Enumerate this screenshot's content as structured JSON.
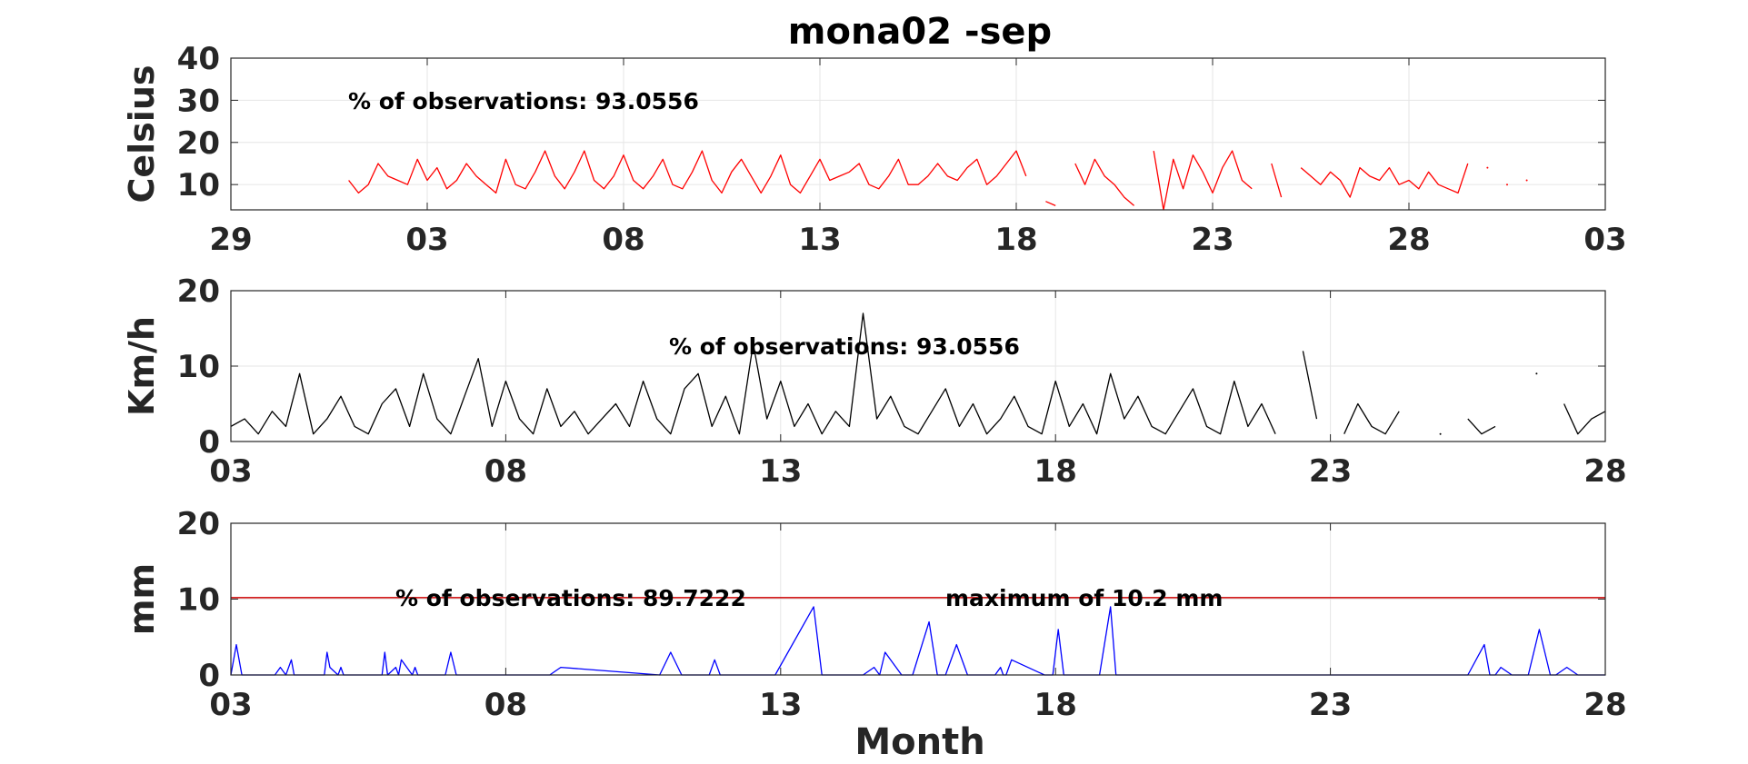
{
  "figure_title": "mona02 -sep",
  "xlabel": "Month",
  "colors": {
    "temperature": "#ff0000",
    "wind": "#000000",
    "precip": "#0000ff",
    "max_line": "#cc0000",
    "grid": "#e6e6e6",
    "axes": "#262626"
  },
  "chart_data": [
    {
      "type": "line",
      "title": "mona02 -sep",
      "ylabel": "Celsius",
      "ylim": [
        4,
        40
      ],
      "yticks": [
        10,
        20,
        30,
        40
      ],
      "xlim": [
        29,
        64
      ],
      "xticks": [
        29,
        34,
        39,
        44,
        49,
        54,
        59,
        64
      ],
      "xtick_labels": [
        "29",
        "03",
        "08",
        "13",
        "18",
        "23",
        "28",
        "03"
      ],
      "grid": true,
      "annotations": [
        "% of observations: 93.0556"
      ],
      "series": [
        {
          "color": "#ff0000",
          "x": [
            32.0,
            32.25,
            32.5,
            32.75,
            33.0,
            33.25,
            33.5,
            33.75,
            34.0,
            34.25,
            34.5,
            34.75,
            35.0,
            35.25,
            35.5,
            35.75,
            36.0,
            36.25,
            36.5,
            36.75,
            37.0,
            37.25,
            37.5,
            37.75,
            38.0,
            38.25,
            38.5,
            38.75,
            39.0,
            39.25,
            39.5,
            39.75,
            40.0,
            40.25,
            40.5,
            40.75,
            41.0,
            41.25,
            41.5,
            41.75,
            42.0,
            42.25,
            42.5,
            42.75,
            43.0,
            43.25,
            43.5,
            43.75,
            44.0,
            44.25,
            44.5,
            44.75,
            45.0,
            45.25,
            45.5,
            45.75,
            46.0,
            46.25,
            46.5,
            46.75,
            47.0,
            47.25,
            47.5,
            47.75,
            48.0,
            48.25,
            48.5,
            48.75,
            49.0,
            49.25,
            49.5,
            49.75,
            50.0,
            50.25,
            50.5,
            50.75,
            51.0,
            51.25,
            51.5,
            51.75,
            52.0,
            52.25,
            52.5,
            52.75,
            53.0,
            53.25,
            53.5,
            53.75,
            54.0,
            54.25,
            54.5,
            54.75,
            55.0,
            55.25,
            55.5,
            55.75,
            56.0,
            56.25,
            56.5,
            56.75,
            57.0,
            57.25,
            57.5,
            57.75,
            58.0,
            58.25,
            58.5,
            58.75,
            59.0,
            59.25,
            59.5,
            59.75,
            60.0,
            60.25,
            60.5,
            60.75,
            61.0,
            61.25,
            61.5,
            61.75,
            62.0
          ],
          "y": [
            11,
            8,
            10,
            15,
            12,
            11,
            10,
            16,
            11,
            14,
            9,
            11,
            15,
            12,
            10,
            8,
            16,
            10,
            9,
            13,
            18,
            12,
            9,
            13,
            18,
            11,
            9,
            12,
            17,
            11,
            9,
            12,
            16,
            10,
            9,
            13,
            18,
            11,
            8,
            13,
            16,
            12,
            8,
            12,
            17,
            10,
            8,
            12,
            16,
            11,
            12,
            13,
            15,
            10,
            9,
            12,
            16,
            10,
            10,
            12,
            15,
            12,
            11,
            14,
            16,
            10,
            12,
            15,
            18,
            12,
            null,
            6,
            5,
            null,
            15,
            10,
            16,
            12,
            10,
            7,
            5,
            null,
            18,
            4,
            16,
            9,
            17,
            13,
            8,
            14,
            18,
            11,
            9,
            null,
            15,
            7,
            null,
            14,
            12,
            10,
            13,
            11,
            7,
            14,
            12,
            11,
            14,
            10,
            11,
            9,
            13,
            10,
            9,
            8,
            15,
            null,
            14,
            null,
            10,
            null,
            11
          ],
          "y_display": [
            11,
            8,
            10,
            15,
            12,
            11,
            10,
            16,
            11,
            14,
            9,
            11,
            15,
            12,
            10,
            8,
            16,
            10,
            9,
            13,
            18,
            12,
            9,
            13,
            18,
            11,
            9,
            12,
            17,
            11,
            9,
            12,
            16,
            10,
            9,
            13,
            18,
            11,
            8,
            13,
            16,
            12,
            8,
            12,
            17,
            10,
            8,
            12,
            16,
            11,
            12,
            13,
            15,
            10,
            9,
            12,
            16,
            10,
            10,
            12,
            15,
            12,
            11,
            14,
            16,
            10,
            12,
            15,
            18,
            12,
            null,
            6,
            5,
            null,
            15,
            10,
            16,
            12,
            10,
            7,
            5,
            null,
            18,
            4,
            16,
            9,
            17,
            13,
            8,
            14,
            18,
            11,
            9,
            null,
            15,
            7,
            null,
            14,
            12,
            10,
            13,
            11,
            7,
            14,
            12,
            11,
            14,
            10,
            11,
            9,
            13,
            10,
            9,
            8,
            15,
            null,
            14,
            null,
            10,
            null,
            11
          ]
        }
      ]
    },
    {
      "type": "line",
      "ylabel": "Km/h",
      "ylim": [
        0,
        20
      ],
      "yticks": [
        0,
        10,
        20
      ],
      "xlim": [
        3,
        28
      ],
      "xticks": [
        3,
        8,
        13,
        18,
        23,
        28
      ],
      "xtick_labels": [
        "03",
        "08",
        "13",
        "18",
        "23",
        "28"
      ],
      "grid": true,
      "annotations": [
        "% of observations: 93.0556"
      ],
      "series": [
        {
          "color": "#000000",
          "x": [
            3.0,
            3.25,
            3.5,
            3.75,
            4.0,
            4.25,
            4.5,
            4.75,
            5.0,
            5.25,
            5.5,
            5.75,
            6.0,
            6.25,
            6.5,
            6.75,
            7.0,
            7.25,
            7.5,
            7.75,
            8.0,
            8.25,
            8.5,
            8.75,
            9.0,
            9.25,
            9.5,
            9.75,
            10.0,
            10.25,
            10.5,
            10.75,
            11.0,
            11.25,
            11.5,
            11.75,
            12.0,
            12.25,
            12.5,
            12.75,
            13.0,
            13.25,
            13.5,
            13.75,
            14.0,
            14.25,
            14.5,
            14.75,
            15.0,
            15.25,
            15.5,
            15.75,
            16.0,
            16.25,
            16.5,
            16.75,
            17.0,
            17.25,
            17.5,
            17.75,
            18.0,
            18.25,
            18.5,
            18.75,
            19.0,
            19.25,
            19.5,
            19.75,
            20.0,
            20.25,
            20.5,
            20.75,
            21.0,
            21.25,
            21.5,
            21.75,
            22.0,
            22.25,
            22.5,
            22.75,
            23.0,
            23.25,
            23.5,
            23.75,
            24.0,
            24.25,
            24.5,
            24.75,
            25.0,
            25.25,
            25.5,
            25.75,
            26.0,
            26.25,
            26.5,
            26.75,
            27.0,
            27.25,
            27.5,
            27.75,
            28.0
          ],
          "y": [
            2,
            3,
            1,
            4,
            2,
            9,
            1,
            3,
            6,
            2,
            1,
            5,
            7,
            2,
            9,
            3,
            1,
            6,
            11,
            2,
            8,
            3,
            1,
            7,
            2,
            4,
            1,
            3,
            5,
            2,
            8,
            3,
            1,
            7,
            9,
            2,
            6,
            1,
            13,
            3,
            8,
            2,
            5,
            1,
            4,
            2,
            17,
            3,
            6,
            2,
            1,
            4,
            7,
            2,
            5,
            1,
            3,
            6,
            2,
            1,
            8,
            2,
            5,
            1,
            9,
            3,
            6,
            2,
            1,
            4,
            7,
            2,
            1,
            8,
            2,
            5,
            1,
            null,
            12,
            3,
            null,
            1,
            5,
            2,
            1,
            4,
            null,
            null,
            1,
            null,
            3,
            1,
            2,
            null,
            null,
            9,
            null,
            5,
            1,
            3,
            4
          ],
          "y_display": [
            2,
            3,
            1,
            4,
            2,
            9,
            1,
            3,
            6,
            2,
            1,
            5,
            7,
            2,
            9,
            3,
            1,
            6,
            11,
            2,
            8,
            3,
            1,
            7,
            2,
            4,
            1,
            3,
            5,
            2,
            8,
            3,
            1,
            7,
            9,
            2,
            6,
            1,
            13,
            3,
            8,
            2,
            5,
            1,
            4,
            2,
            17,
            3,
            6,
            2,
            1,
            4,
            7,
            2,
            5,
            1,
            3,
            6,
            2,
            1,
            8,
            2,
            5,
            1,
            9,
            3,
            6,
            2,
            1,
            4,
            7,
            2,
            1,
            8,
            2,
            5,
            1,
            null,
            12,
            3,
            null,
            1,
            5,
            2,
            1,
            4,
            null,
            null,
            1,
            null,
            3,
            1,
            2,
            null,
            null,
            9,
            null,
            5,
            1,
            3,
            4
          ]
        }
      ]
    },
    {
      "type": "line",
      "ylabel": "mm",
      "ylim": [
        0,
        20
      ],
      "yticks": [
        0,
        10,
        20
      ],
      "xlim": [
        3,
        28
      ],
      "xticks": [
        3,
        8,
        13,
        18,
        23,
        28
      ],
      "xtick_labels": [
        "03",
        "08",
        "13",
        "18",
        "23",
        "28"
      ],
      "xlabel": "Month",
      "grid": true,
      "annotations": [
        "% of observations: 89.7222",
        "maximum of 10.2 mm"
      ],
      "reference_line": {
        "y": 10.2,
        "color": "#cc0000"
      },
      "series": [
        {
          "color": "#0000ff",
          "x": [
            3.0,
            3.1,
            3.2,
            3.4,
            3.8,
            3.9,
            4.0,
            4.1,
            4.15,
            4.3,
            4.7,
            4.75,
            4.8,
            4.95,
            5.0,
            5.05,
            5.3,
            5.75,
            5.8,
            5.85,
            6.0,
            6.05,
            6.1,
            6.3,
            6.35,
            6.4,
            6.6,
            6.9,
            7.0,
            7.1,
            7.2,
            8.8,
            9.0,
            10.8,
            11.0,
            11.2,
            11.7,
            11.8,
            11.9,
            12.7,
            12.8,
            12.9,
            13.6,
            13.75,
            13.85,
            14.5,
            14.7,
            14.8,
            14.9,
            15.2,
            15.4,
            15.7,
            15.85,
            16.0,
            16.2,
            16.4,
            16.9,
            17.0,
            17.05,
            17.1,
            17.2,
            17.8,
            17.95,
            18.05,
            18.15,
            18.8,
            19.0,
            19.1,
            19.8,
            20.0,
            20.1,
            20.5,
            20.8,
            21.0,
            21.2,
            21.5,
            22.0,
            22.5,
            23.0,
            23.5,
            24.0,
            24.5,
            25.0,
            25.5,
            25.8,
            25.9,
            26.0,
            26.1,
            26.3,
            26.6,
            26.8,
            27.0,
            27.1,
            27.3,
            27.5,
            27.8,
            27.9,
            28.0
          ],
          "y": [
            0,
            4,
            0,
            0,
            0,
            1,
            0,
            2,
            0,
            0,
            0,
            3,
            1,
            0,
            1,
            0,
            0,
            0,
            3,
            0,
            1,
            0,
            2,
            0,
            1,
            0,
            0,
            0,
            3,
            0,
            0,
            0,
            1,
            0,
            3,
            0,
            0,
            2,
            0,
            0,
            0,
            0,
            9,
            0,
            0,
            0,
            1,
            0,
            3,
            0,
            0,
            7,
            0,
            0,
            4,
            0,
            0,
            1,
            0,
            0,
            2,
            0,
            0,
            6,
            0,
            0,
            9,
            0,
            0,
            0,
            0,
            0,
            0,
            0,
            0,
            0,
            0,
            0,
            0,
            0,
            0,
            0,
            0,
            0,
            4,
            0,
            0,
            1,
            0,
            0,
            6,
            0,
            0,
            1,
            0,
            0,
            0,
            0
          ],
          "y_display": [
            0,
            4,
            0,
            0,
            0,
            1,
            0,
            2,
            0,
            0,
            0,
            3,
            1,
            0,
            1,
            0,
            0,
            0,
            3,
            0,
            1,
            0,
            2,
            0,
            1,
            0,
            0,
            0,
            3,
            0,
            0,
            0,
            1,
            0,
            3,
            0,
            0,
            2,
            0,
            0,
            0,
            0,
            9,
            0,
            0,
            0,
            1,
            0,
            3,
            0,
            0,
            7,
            0,
            0,
            4,
            0,
            0,
            1,
            0,
            0,
            2,
            0,
            0,
            6,
            0,
            0,
            9,
            0,
            0,
            0,
            0,
            0,
            0,
            0,
            0,
            0,
            0,
            0,
            0,
            0,
            0,
            0,
            0,
            0,
            4,
            0,
            0,
            1,
            0,
            0,
            6,
            0,
            0,
            1,
            0,
            0,
            0,
            0
          ]
        }
      ]
    }
  ]
}
